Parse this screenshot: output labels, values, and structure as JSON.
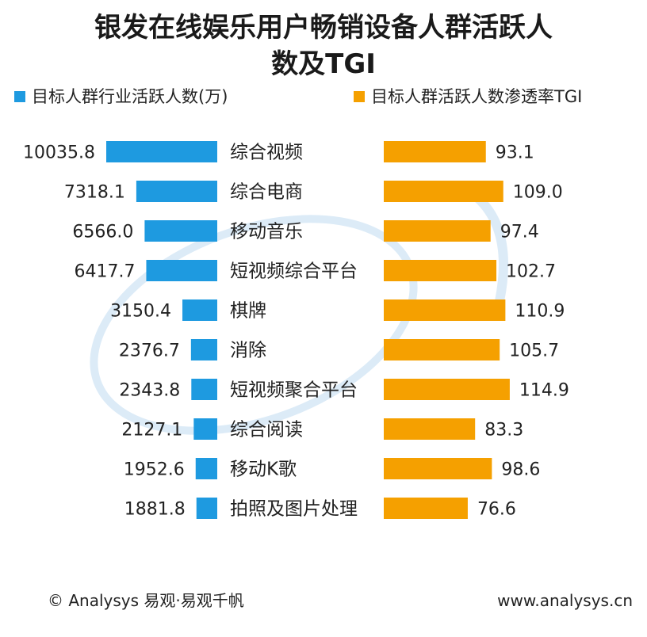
{
  "title": {
    "line1": "银发在线娱乐用户畅销设备人群活跃人",
    "line2": "数及TGI"
  },
  "legend": {
    "left": {
      "label": "目标人群行业活跃人数(万)",
      "color": "#1e9ae0"
    },
    "right": {
      "label": "目标人群活跃人数渗透率TGI",
      "color": "#f5a000"
    }
  },
  "colors": {
    "left_bar": "#1e9ae0",
    "right_bar": "#f5a000"
  },
  "chart_data": {
    "type": "bar",
    "categories": [
      "综合视频",
      "综合电商",
      "移动音乐",
      "短视频综合平台",
      "棋牌",
      "消除",
      "短视频聚合平台",
      "综合阅读",
      "移动K歌",
      "拍照及图片处理"
    ],
    "series": [
      {
        "name": "目标人群行业活跃人数(万)",
        "values": [
          10035.8,
          7318.1,
          6566.0,
          6417.7,
          3150.4,
          2376.7,
          2343.8,
          2127.1,
          1952.6,
          1881.8
        ],
        "labels": [
          "10035.8",
          "7318.1",
          "6566.0",
          "6417.7",
          "3150.4",
          "2376.7",
          "2343.8",
          "2127.1",
          "1952.6",
          "1881.8"
        ]
      },
      {
        "name": "目标人群活跃人数渗透率TGI",
        "values": [
          93.1,
          109.0,
          97.4,
          102.7,
          110.9,
          105.7,
          114.9,
          83.3,
          98.6,
          76.6
        ],
        "labels": [
          "93.1",
          "109.0",
          "97.4",
          "102.7",
          "110.9",
          "105.7",
          "114.9",
          "83.3",
          "98.6",
          "76.6"
        ]
      }
    ]
  },
  "footer": {
    "left": "© Analysys 易观·易观千帆",
    "right": "www.analysys.cn"
  }
}
